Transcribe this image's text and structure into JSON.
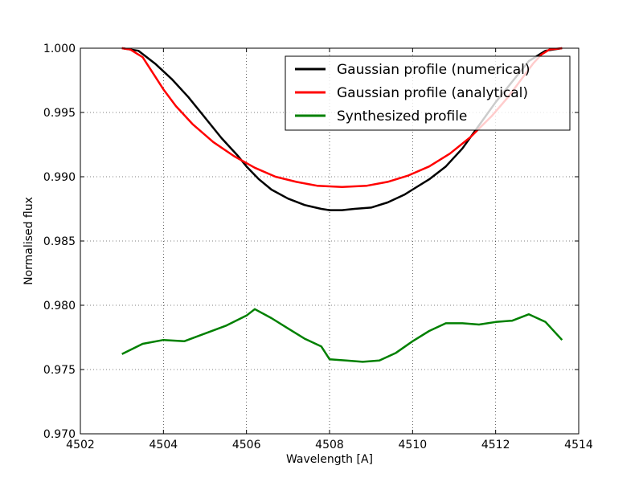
{
  "chart_data": {
    "type": "line",
    "xlabel": "Wavelength [A]",
    "ylabel": "Normalised flux",
    "xlim": [
      4502,
      4514
    ],
    "ylim": [
      0.97,
      1.0
    ],
    "xticks": [
      4502,
      4504,
      4506,
      4508,
      4510,
      4512,
      4514
    ],
    "xtick_labels": [
      "4502",
      "4504",
      "4506",
      "4508",
      "4510",
      "4512",
      "4514"
    ],
    "yticks": [
      0.97,
      0.975,
      0.98,
      0.985,
      0.99,
      0.995,
      1.0
    ],
    "ytick_labels": [
      "0.970",
      "0.975",
      "0.980",
      "0.985",
      "0.990",
      "0.995",
      "1.000"
    ],
    "grid": true,
    "legend_position": "top-right",
    "series": [
      {
        "name": "Gaussian profile (numerical)",
        "color": "#000000",
        "x": [
          4503.0,
          4503.4,
          4503.8,
          4504.2,
          4504.6,
          4505.0,
          4505.4,
          4505.8,
          4506.0,
          4506.3,
          4506.6,
          4507.0,
          4507.4,
          4507.8,
          4508.0,
          4508.3,
          4508.6,
          4509.0,
          4509.4,
          4509.8,
          4510.0,
          4510.4,
          4510.8,
          4511.2,
          4511.6,
          4512.0,
          4512.4,
          4512.8,
          4513.2,
          4513.6
        ],
        "y": [
          1.0,
          0.9998,
          0.9988,
          0.9976,
          0.9962,
          0.9946,
          0.993,
          0.9916,
          0.9908,
          0.9898,
          0.989,
          0.9883,
          0.9878,
          0.9875,
          0.9874,
          0.9874,
          0.9875,
          0.9876,
          0.988,
          0.9886,
          0.989,
          0.9898,
          0.9908,
          0.9922,
          0.994,
          0.9958,
          0.9974,
          0.999,
          0.9998,
          1.0
        ]
      },
      {
        "name": "Gaussian profile (analytical)",
        "color": "#ff0000",
        "x": [
          4503.0,
          4503.2,
          4503.5,
          4503.8,
          4504.0,
          4504.3,
          4504.7,
          4505.2,
          4505.7,
          4506.2,
          4506.7,
          4507.2,
          4507.7,
          4508.3,
          4508.9,
          4509.4,
          4509.9,
          4510.4,
          4510.9,
          4511.4,
          4511.9,
          4512.3,
          4512.6,
          4512.9,
          4513.1,
          4513.3,
          4513.6
        ],
        "y": [
          1.0,
          0.9999,
          0.9993,
          0.9978,
          0.9968,
          0.9955,
          0.9941,
          0.9927,
          0.9916,
          0.9907,
          0.99,
          0.9896,
          0.9893,
          0.9892,
          0.9893,
          0.9896,
          0.9901,
          0.9908,
          0.9918,
          0.9931,
          0.9947,
          0.9962,
          0.9975,
          0.9988,
          0.9995,
          0.9999,
          1.0
        ]
      },
      {
        "name": "Synthesized profile",
        "color": "#008000",
        "x": [
          4503.0,
          4503.5,
          4504.0,
          4504.5,
          4505.0,
          4505.5,
          4506.0,
          4506.2,
          4506.6,
          4507.0,
          4507.4,
          4507.8,
          4508.0,
          4508.4,
          4508.8,
          4509.2,
          4509.6,
          4510.0,
          4510.4,
          4510.8,
          4511.2,
          4511.6,
          4512.0,
          4512.4,
          4512.8,
          4513.2,
          4513.6
        ],
        "y": [
          0.9762,
          0.977,
          0.9773,
          0.9772,
          0.9778,
          0.9784,
          0.9792,
          0.9797,
          0.979,
          0.9782,
          0.9774,
          0.9768,
          0.9758,
          0.9757,
          0.9756,
          0.9757,
          0.9763,
          0.9772,
          0.978,
          0.9786,
          0.9786,
          0.9785,
          0.9787,
          0.9788,
          0.9793,
          0.9787,
          0.9773
        ]
      }
    ]
  }
}
